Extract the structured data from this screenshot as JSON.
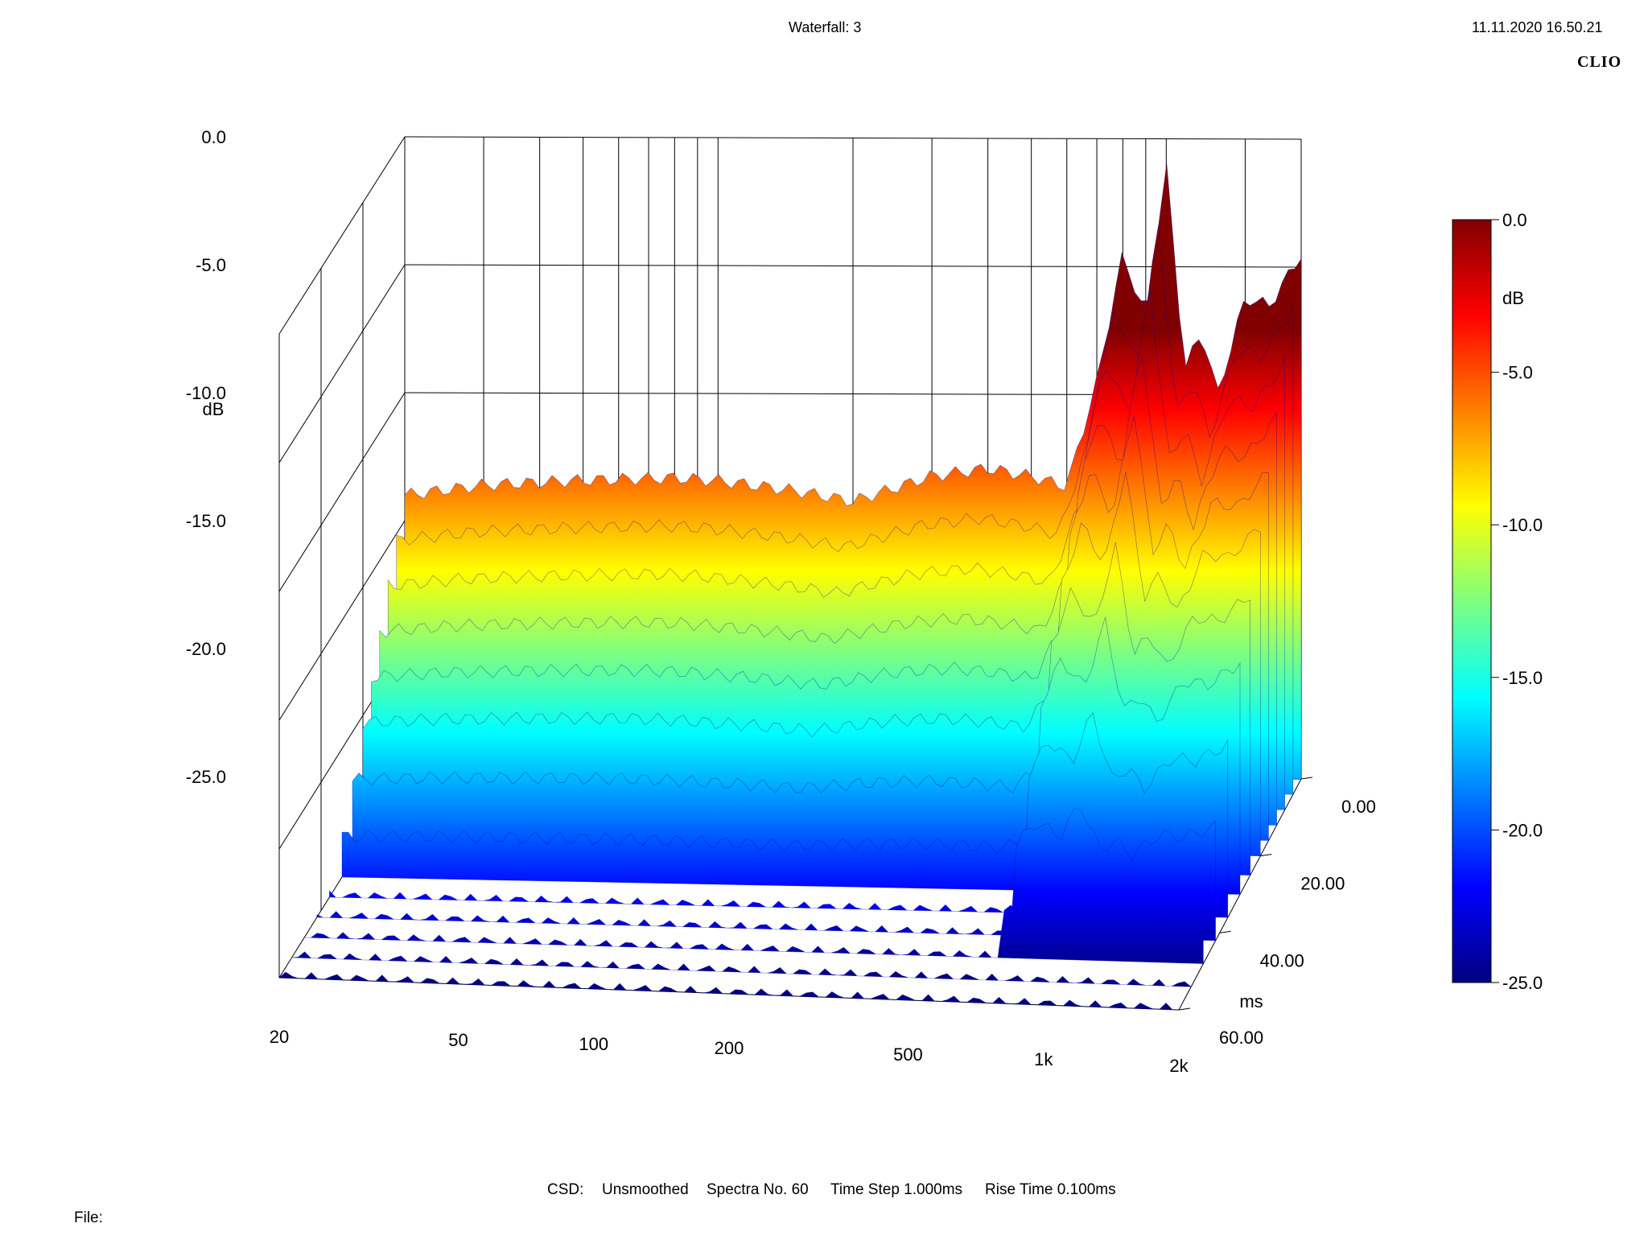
{
  "header": {
    "title": "Waterfall: 3",
    "timestamp": "11.11.2020 16.50.21",
    "brand": "CLIO"
  },
  "chart_data": {
    "type": "waterfall",
    "title": "Waterfall: 3",
    "freq_axis": {
      "scale": "log",
      "range": [
        20,
        2000
      ],
      "ticks": [
        20,
        50,
        100,
        200,
        500,
        1000,
        2000
      ],
      "tick_labels": [
        "20",
        "50",
        "100",
        "200",
        "500",
        "1k",
        "2k"
      ]
    },
    "db_axis": {
      "unit": "dB",
      "range": [
        -25,
        0
      ],
      "ticks": [
        0,
        -5,
        -10,
        -15,
        -20,
        -25
      ],
      "tick_labels": [
        "0.0",
        "-5.0",
        "-10.0",
        "-15.0",
        "-20.0",
        "-25.0"
      ]
    },
    "time_axis": {
      "unit": "ms",
      "range": [
        0,
        60
      ],
      "ticks": [
        0,
        20,
        40,
        60
      ],
      "tick_labels": [
        "0.00",
        "20.00",
        "40.00",
        "60.00"
      ]
    },
    "colorbar": {
      "unit": "dB",
      "range": [
        -25,
        0
      ],
      "tick_labels": [
        "0.0",
        "-5.0",
        "-10.0",
        "-15.0",
        "-20.0",
        "-25.0"
      ],
      "colors": [
        "#800000",
        "#ff0000",
        "#ffff00",
        "#00ffff",
        "#0000ff",
        "#00007f"
      ]
    },
    "front_slice": {
      "time_ms": 0,
      "freq_hz": [
        20,
        30,
        50,
        80,
        100,
        150,
        200,
        300,
        400,
        500,
        600,
        700,
        800,
        900,
        1000,
        1100,
        1200,
        1300,
        1500,
        1700,
        2000
      ],
      "db": [
        -14,
        -13.6,
        -13.4,
        -13.3,
        -13.4,
        -13.8,
        -14.2,
        -13.2,
        -12.9,
        -13.2,
        -13.6,
        -9.5,
        -4.5,
        -7,
        -1.0,
        -9,
        -7.5,
        -10,
        -6.2,
        -6.5,
        -4.5
      ]
    },
    "grid": true
  },
  "footer": {
    "csd": "CSD:",
    "smoothing": "Unsmoothed",
    "spectra": "Spectra No. 60",
    "time_step": "Time Step 1.000ms",
    "rise_time": "Rise Time 0.100ms",
    "file": "File:"
  }
}
